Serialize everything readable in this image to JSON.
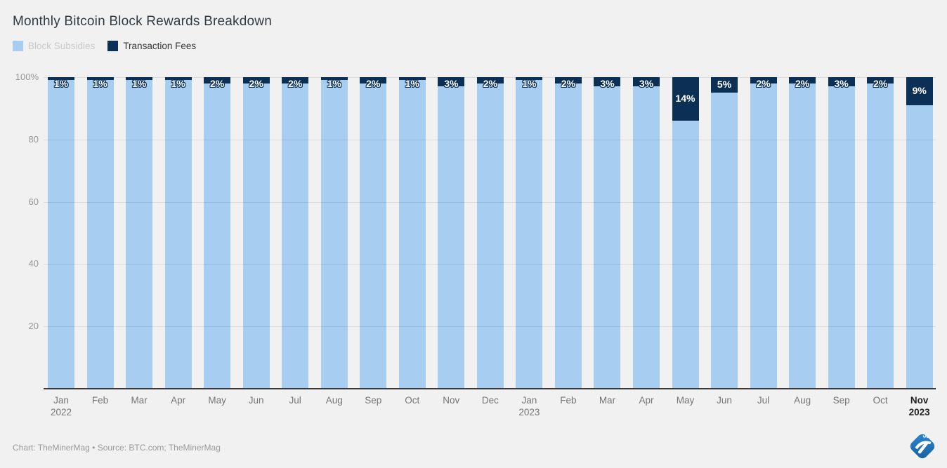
{
  "title": "Monthly Bitcoin Block Rewards Breakdown",
  "legend": {
    "items": [
      {
        "label": "Block Subsidies",
        "swatch_color": "#a7cdf0",
        "text_color": "#c9c9c9"
      },
      {
        "label": "Transaction Fees",
        "swatch_color": "#0b2f55",
        "text_color": "#333333"
      }
    ]
  },
  "colors": {
    "background": "#f1f1f2",
    "block_subsidies": "#a7cdf0",
    "transaction_fees": "#0b2f55",
    "axis_line": "#3a3a3a",
    "logo_blue": "#1e6fb8"
  },
  "chart_data": {
    "type": "bar",
    "stacked": true,
    "percentage": true,
    "title": "Monthly Bitcoin Block Rewards Breakdown",
    "xlabel": "",
    "ylabel": "",
    "ylim": [
      0,
      100
    ],
    "grid": true,
    "legend_position": "top-left",
    "ytick_values": [
      100,
      80,
      60,
      40,
      20
    ],
    "ytick_labels": [
      "100%",
      "80",
      "60",
      "40",
      "20"
    ],
    "categories": [
      {
        "month": "Jan",
        "year": "2022",
        "bold": false
      },
      {
        "month": "Feb",
        "year": "",
        "bold": false
      },
      {
        "month": "Mar",
        "year": "",
        "bold": false
      },
      {
        "month": "Apr",
        "year": "",
        "bold": false
      },
      {
        "month": "May",
        "year": "",
        "bold": false
      },
      {
        "month": "Jun",
        "year": "",
        "bold": false
      },
      {
        "month": "Jul",
        "year": "",
        "bold": false
      },
      {
        "month": "Aug",
        "year": "",
        "bold": false
      },
      {
        "month": "Sep",
        "year": "",
        "bold": false
      },
      {
        "month": "Oct",
        "year": "",
        "bold": false
      },
      {
        "month": "Nov",
        "year": "",
        "bold": false
      },
      {
        "month": "Dec",
        "year": "",
        "bold": false
      },
      {
        "month": "Jan",
        "year": "2023",
        "bold": false
      },
      {
        "month": "Feb",
        "year": "",
        "bold": false
      },
      {
        "month": "Mar",
        "year": "",
        "bold": false
      },
      {
        "month": "Apr",
        "year": "",
        "bold": false
      },
      {
        "month": "May",
        "year": "",
        "bold": false
      },
      {
        "month": "Jun",
        "year": "",
        "bold": false
      },
      {
        "month": "Jul",
        "year": "",
        "bold": false
      },
      {
        "month": "Aug",
        "year": "",
        "bold": false
      },
      {
        "month": "Sep",
        "year": "",
        "bold": false
      },
      {
        "month": "Oct",
        "year": "",
        "bold": false
      },
      {
        "month": "Nov",
        "year": "2023",
        "bold": true
      }
    ],
    "series": [
      {
        "name": "Block Subsidies",
        "values": [
          99,
          99,
          99,
          99,
          98,
          98,
          98,
          99,
          98,
          99,
          97,
          98,
          99,
          98,
          97,
          97,
          86,
          95,
          98,
          98,
          97,
          98,
          91
        ]
      },
      {
        "name": "Transaction Fees",
        "values": [
          1,
          1,
          1,
          1,
          2,
          2,
          2,
          1,
          2,
          1,
          3,
          2,
          1,
          2,
          3,
          3,
          14,
          5,
          2,
          2,
          3,
          2,
          9
        ],
        "labels": [
          "1%",
          "1%",
          "1%",
          "1%",
          "2%",
          "2%",
          "2%",
          "1%",
          "2%",
          "1%",
          "3%",
          "2%",
          "1%",
          "2%",
          "3%",
          "3%",
          "14%",
          "5%",
          "2%",
          "2%",
          "3%",
          "2%",
          "9%"
        ]
      }
    ]
  },
  "footer": {
    "text": "Chart: TheMinerMag • Source: BTC.com; TheMinerMag"
  }
}
